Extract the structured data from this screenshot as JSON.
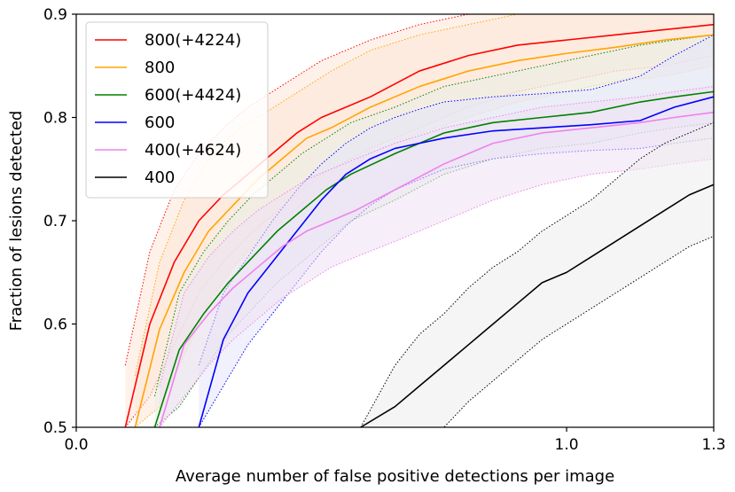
{
  "chart_data": {
    "type": "line",
    "title": "",
    "xlabel": "Average number of false positive detections per image",
    "ylabel": "Fraction of lesions detected",
    "xlim": [
      0,
      1.3
    ],
    "ylim": [
      0.5,
      0.9
    ],
    "xticks": [
      {
        "value": 0,
        "label": "0.0"
      },
      {
        "value": 1.0,
        "label": "1.0"
      },
      {
        "value": 1.3,
        "label": "1.3"
      }
    ],
    "yticks": [
      {
        "value": 0.5,
        "label": "0.5"
      },
      {
        "value": 0.6,
        "label": "0.6"
      },
      {
        "value": 0.7,
        "label": "0.7"
      },
      {
        "value": 0.8,
        "label": "0.8"
      },
      {
        "value": 0.9,
        "label": "0.9"
      }
    ],
    "legend_position": "top-left",
    "series": [
      {
        "name": "800(+4224)",
        "color": "#ff0000",
        "fill": "#fde6d7",
        "x": [
          0.1,
          0.15,
          0.2,
          0.25,
          0.3,
          0.35,
          0.4,
          0.45,
          0.5,
          0.6,
          0.7,
          0.8,
          0.9,
          1.0,
          1.1,
          1.2,
          1.3
        ],
        "y": [
          0.5,
          0.6,
          0.66,
          0.7,
          0.725,
          0.745,
          0.765,
          0.785,
          0.8,
          0.82,
          0.845,
          0.86,
          0.87,
          0.875,
          0.88,
          0.885,
          0.89
        ],
        "upper": [
          0.56,
          0.67,
          0.73,
          0.765,
          0.79,
          0.81,
          0.825,
          0.84,
          0.855,
          0.875,
          0.89,
          0.9,
          0.9,
          0.9,
          0.9,
          0.9,
          0.9
        ],
        "lower": [
          0.5,
          0.53,
          0.58,
          0.63,
          0.66,
          0.685,
          0.705,
          0.725,
          0.745,
          0.77,
          0.79,
          0.81,
          0.825,
          0.835,
          0.845,
          0.85,
          0.86
        ]
      },
      {
        "name": "800",
        "color": "#ffa500",
        "fill": "#fde6d7",
        "x": [
          0.12,
          0.17,
          0.22,
          0.27,
          0.32,
          0.37,
          0.42,
          0.47,
          0.52,
          0.6,
          0.7,
          0.8,
          0.9,
          1.0,
          1.1,
          1.2,
          1.3
        ],
        "y": [
          0.5,
          0.595,
          0.65,
          0.69,
          0.715,
          0.74,
          0.76,
          0.78,
          0.79,
          0.81,
          0.83,
          0.845,
          0.855,
          0.862,
          0.868,
          0.875,
          0.88
        ],
        "upper": [
          0.55,
          0.66,
          0.72,
          0.76,
          0.785,
          0.8,
          0.815,
          0.83,
          0.845,
          0.865,
          0.88,
          0.89,
          0.9,
          0.9,
          0.9,
          0.9,
          0.9
        ],
        "lower": [
          0.5,
          0.52,
          0.57,
          0.62,
          0.655,
          0.68,
          0.7,
          0.72,
          0.735,
          0.765,
          0.785,
          0.8,
          0.815,
          0.825,
          0.835,
          0.84,
          0.85
        ]
      },
      {
        "name": "600(+4424)",
        "color": "#008000",
        "fill": "#e8eee6",
        "x": [
          0.16,
          0.21,
          0.26,
          0.31,
          0.36,
          0.41,
          0.46,
          0.51,
          0.56,
          0.65,
          0.75,
          0.85,
          0.95,
          1.05,
          1.15,
          1.22,
          1.3
        ],
        "y": [
          0.5,
          0.575,
          0.61,
          0.64,
          0.665,
          0.69,
          0.71,
          0.73,
          0.745,
          0.765,
          0.785,
          0.795,
          0.8,
          0.805,
          0.815,
          0.82,
          0.825
        ],
        "upper": [
          0.53,
          0.63,
          0.67,
          0.7,
          0.725,
          0.745,
          0.765,
          0.78,
          0.795,
          0.81,
          0.83,
          0.84,
          0.85,
          0.86,
          0.87,
          0.875,
          0.88
        ],
        "lower": [
          0.5,
          0.52,
          0.555,
          0.59,
          0.615,
          0.64,
          0.66,
          0.68,
          0.7,
          0.72,
          0.745,
          0.76,
          0.77,
          0.775,
          0.785,
          0.79,
          0.795
        ]
      },
      {
        "name": "600",
        "color": "#0000ff",
        "fill": "#e5e5fb",
        "x": [
          0.25,
          0.3,
          0.35,
          0.4,
          0.45,
          0.5,
          0.55,
          0.6,
          0.65,
          0.7,
          0.75,
          0.85,
          0.95,
          1.05,
          1.15,
          1.22,
          1.3
        ],
        "y": [
          0.5,
          0.585,
          0.63,
          0.66,
          0.69,
          0.72,
          0.745,
          0.76,
          0.77,
          0.775,
          0.78,
          0.787,
          0.79,
          0.793,
          0.797,
          0.81,
          0.82
        ],
        "upper": [
          0.56,
          0.63,
          0.665,
          0.7,
          0.73,
          0.755,
          0.775,
          0.79,
          0.8,
          0.808,
          0.815,
          0.82,
          0.823,
          0.827,
          0.84,
          0.86,
          0.88
        ],
        "lower": [
          0.5,
          0.54,
          0.58,
          0.61,
          0.64,
          0.67,
          0.695,
          0.715,
          0.73,
          0.74,
          0.75,
          0.76,
          0.765,
          0.768,
          0.77,
          0.775,
          0.78
        ]
      },
      {
        "name": "400(+4624)",
        "color": "#ee82ee",
        "fill": "#efe0f3",
        "x": [
          0.17,
          0.22,
          0.27,
          0.32,
          0.37,
          0.42,
          0.47,
          0.52,
          0.57,
          0.65,
          0.75,
          0.85,
          0.95,
          1.05,
          1.15,
          1.22,
          1.3
        ],
        "y": [
          0.5,
          0.58,
          0.61,
          0.635,
          0.655,
          0.675,
          0.69,
          0.7,
          0.71,
          0.73,
          0.755,
          0.775,
          0.785,
          0.79,
          0.795,
          0.8,
          0.805
        ],
        "upper": [
          0.54,
          0.63,
          0.665,
          0.69,
          0.71,
          0.725,
          0.74,
          0.75,
          0.76,
          0.775,
          0.79,
          0.8,
          0.81,
          0.815,
          0.82,
          0.825,
          0.83
        ],
        "lower": [
          0.5,
          0.53,
          0.56,
          0.585,
          0.605,
          0.625,
          0.64,
          0.655,
          0.665,
          0.68,
          0.7,
          0.72,
          0.735,
          0.745,
          0.75,
          0.755,
          0.76
        ]
      },
      {
        "name": "400",
        "color": "#000000",
        "fill": "#ececec",
        "x": [
          0.58,
          0.65,
          0.7,
          0.75,
          0.8,
          0.85,
          0.9,
          0.95,
          1.0,
          1.05,
          1.1,
          1.15,
          1.2,
          1.25,
          1.3
        ],
        "y": [
          0.5,
          0.52,
          0.54,
          0.56,
          0.58,
          0.6,
          0.62,
          0.64,
          0.65,
          0.665,
          0.68,
          0.695,
          0.71,
          0.725,
          0.735
        ],
        "upper": [
          0.5,
          0.56,
          0.59,
          0.61,
          0.635,
          0.655,
          0.67,
          0.69,
          0.705,
          0.72,
          0.74,
          0.76,
          0.775,
          0.785,
          0.795
        ],
        "lower": [
          0.5,
          0.5,
          0.5,
          0.5,
          0.525,
          0.545,
          0.565,
          0.585,
          0.6,
          0.615,
          0.63,
          0.645,
          0.66,
          0.675,
          0.685
        ]
      }
    ]
  }
}
